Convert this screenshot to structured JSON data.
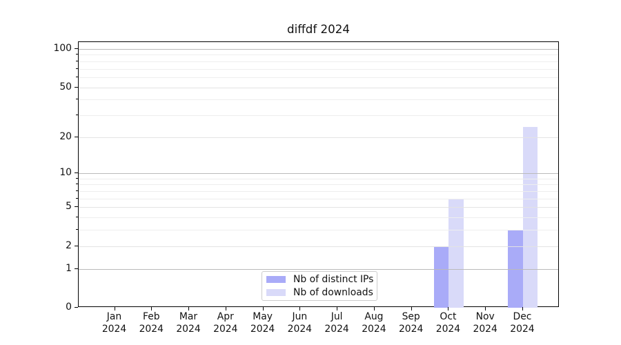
{
  "figure": {
    "background": "#ffffff"
  },
  "chart_data": {
    "type": "bar",
    "title": "diffdf 2024",
    "categories": [
      "Jan 2024",
      "Feb 2024",
      "Mar 2024",
      "Apr 2024",
      "May 2024",
      "Jun 2024",
      "Jul 2024",
      "Aug 2024",
      "Sep 2024",
      "Oct 2024",
      "Nov 2024",
      "Dec 2024"
    ],
    "series": [
      {
        "name": "Nb of distinct IPs",
        "color": "#a9abf8",
        "values": [
          0,
          0,
          0,
          0,
          0,
          0,
          0,
          0,
          0,
          2,
          0,
          3
        ]
      },
      {
        "name": "Nb of downloads",
        "color": "#d9daf9",
        "values": [
          0,
          0,
          0,
          0,
          0,
          0,
          0,
          0,
          0,
          6,
          0,
          24
        ]
      }
    ],
    "yscale": "log1p",
    "ylim": [
      0,
      113
    ],
    "y_ticks_labeled": [
      0,
      1,
      2,
      5,
      10,
      20,
      50,
      100
    ],
    "y_major_gridlines": [
      1,
      10,
      100
    ],
    "y_minor_gridlines": [
      3,
      4,
      6,
      7,
      8,
      9,
      30,
      40,
      60,
      70,
      80,
      90
    ],
    "grid": true,
    "legend_position": "lower center"
  },
  "colors": {
    "major_grid": "#bababa",
    "labeled_grid": "#e3e3e3",
    "minor_grid": "#eeeeee",
    "spine": "#000000",
    "text": "#111111",
    "legend_border": "#cccccc"
  }
}
